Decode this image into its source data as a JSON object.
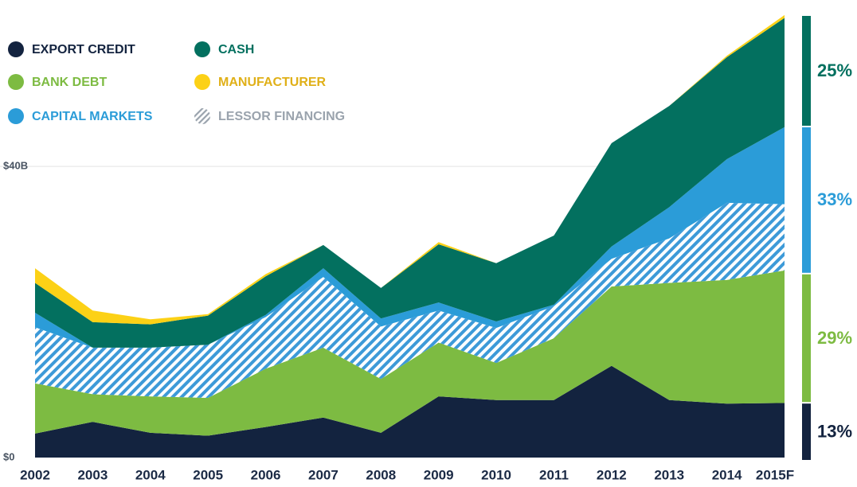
{
  "chart_data": {
    "type": "stacked_area",
    "categories": [
      "2002",
      "2003",
      "2004",
      "2005",
      "2006",
      "2007",
      "2008",
      "2009",
      "2010",
      "2011",
      "2012",
      "2013",
      "2014",
      "2015F"
    ],
    "series": [
      {
        "name": "EXPORT CREDIT",
        "color": "#13233f",
        "values": [
          3.3,
          4.9,
          3.4,
          3.0,
          4.2,
          5.5,
          3.4,
          8.4,
          7.9,
          7.9,
          12.6,
          7.9,
          7.4,
          7.5
        ],
        "share": 13,
        "share_label": "13%"
      },
      {
        "name": "BANK DEBT",
        "color": "#7dbb42",
        "values": [
          6.9,
          3.8,
          5.0,
          5.2,
          8.0,
          9.6,
          7.4,
          7.4,
          5.1,
          8.5,
          10.9,
          16.1,
          17.0,
          18.2
        ],
        "share": 29,
        "share_label": "29%"
      },
      {
        "name": "LESSOR FINANCING",
        "color": "#3d9ad8",
        "hatched": true,
        "legend_color": "#9aa3ad",
        "values": [
          7.7,
          6.4,
          6.7,
          7.3,
          7.1,
          9.7,
          7.2,
          4.4,
          4.8,
          4.4,
          3.8,
          6.1,
          10.6,
          9.1
        ]
      },
      {
        "name": "CAPITAL MARKETS",
        "color": "#2b9cd8",
        "values": [
          2.0,
          0,
          0,
          0,
          0.3,
          1.2,
          1.1,
          1.1,
          0.9,
          0.2,
          1.7,
          4.3,
          6.0,
          10.6
        ],
        "share": 33,
        "share_label": "33%"
      },
      {
        "name": "CASH",
        "color": "#03705f",
        "values": [
          4.1,
          3.5,
          3.2,
          4.0,
          5.3,
          3.2,
          4.2,
          8.0,
          8.0,
          9.5,
          14.2,
          13.9,
          14.0,
          15.0
        ],
        "share": 25,
        "share_label": "25%"
      },
      {
        "name": "MANUFACTURER",
        "color": "#fcd116",
        "values": [
          2.0,
          1.6,
          0.7,
          0.2,
          0.3,
          0,
          0,
          0.3,
          0,
          0,
          0,
          0,
          0.2,
          0.4
        ]
      }
    ],
    "ylim": [
      0,
      61
    ],
    "yticks": [
      {
        "value": 0,
        "label": "$0"
      },
      {
        "value": 40,
        "label": "$40B"
      }
    ],
    "grid": true
  }
}
